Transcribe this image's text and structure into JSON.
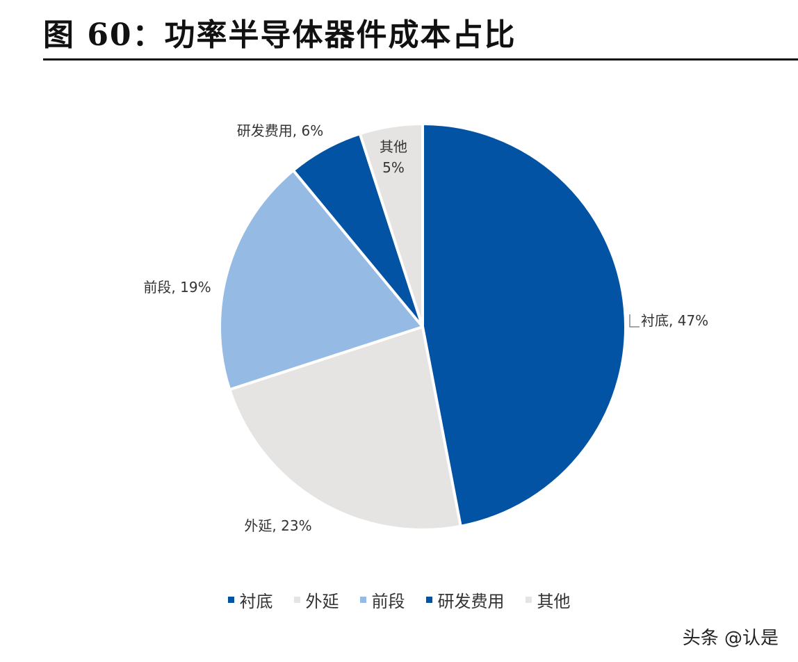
{
  "header": {
    "title": "图 60：功率半导体器件成本占比"
  },
  "chart_data": {
    "type": "pie",
    "slices": [
      {
        "label": "衬底",
        "value": 47,
        "data_label": "衬底, 47%",
        "color": "#0353A4"
      },
      {
        "label": "外延",
        "value": 23,
        "data_label": "外延, 23%",
        "color": "#E6E4E2"
      },
      {
        "label": "前段",
        "value": 19,
        "data_label": "前段, 19%",
        "color": "#95BAE3"
      },
      {
        "label": "研发费用",
        "value": 6,
        "data_label": "研发费用, 6%",
        "color": "#0353A4"
      },
      {
        "label": "其他",
        "value": 5,
        "data_label": "其他\n5%",
        "color": "#E6E4E2"
      }
    ],
    "legend": {
      "placement": "bottom"
    }
  },
  "watermark": {
    "text": "头条 @认是"
  }
}
